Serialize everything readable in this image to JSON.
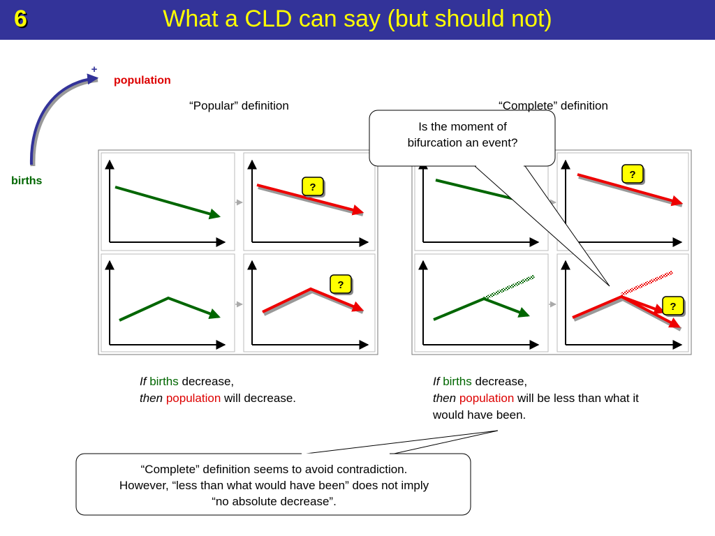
{
  "header": {
    "slide_number": "6",
    "title": "What a CLD can say (but should not)",
    "background": "#333399",
    "title_color": "#ffff00"
  },
  "cld": {
    "polarity": "+",
    "from": "births",
    "to": "population",
    "from_color": "#006600",
    "to_color": "#dd0000"
  },
  "columns": {
    "popular": "“Popular” definition",
    "complete": "“Complete” definition"
  },
  "question_badge": "?",
  "callout_bifurcation": {
    "line1": "Is the moment of",
    "line2": "bifurcation an event?"
  },
  "popular_caption": {
    "if": "If",
    "births": "births",
    "decrease": " decrease,",
    "then": "then",
    "population": "population",
    "rest": " will decrease."
  },
  "complete_caption": {
    "if": "If",
    "births": "births",
    "decrease": " decrease,",
    "then": "then",
    "population": "population",
    "rest1": " will be less than what it",
    "rest2": "would have been."
  },
  "callout_note": {
    "line1": "“Complete” definition seems to avoid contradiction.",
    "line2": "However, “less than what would have been” does not imply",
    "line3": "“no absolute decrease”."
  }
}
